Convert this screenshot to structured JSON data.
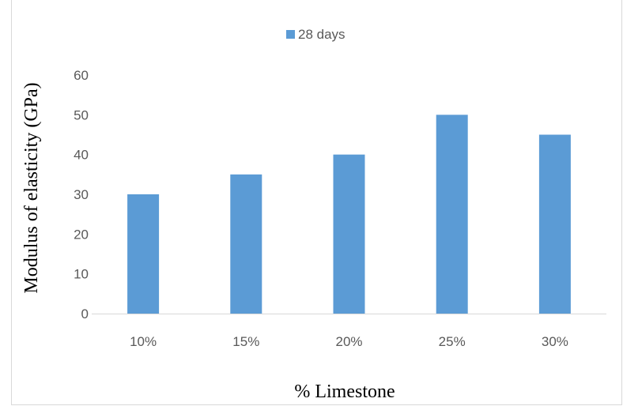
{
  "chart_data": {
    "type": "bar",
    "categories": [
      "10%",
      "15%",
      "20%",
      "25%",
      "30%"
    ],
    "series": [
      {
        "name": "28 days",
        "values": [
          30,
          35,
          40,
          50,
          45
        ],
        "color": "#5b9bd5"
      }
    ],
    "title": "",
    "xlabel": "% Limestone",
    "ylabel": "Modulus of elasticity (GPa)",
    "ylim": [
      0,
      60
    ],
    "yticks": [
      0,
      10,
      20,
      30,
      40,
      50,
      60
    ],
    "grid": false,
    "legend_position": "top"
  }
}
